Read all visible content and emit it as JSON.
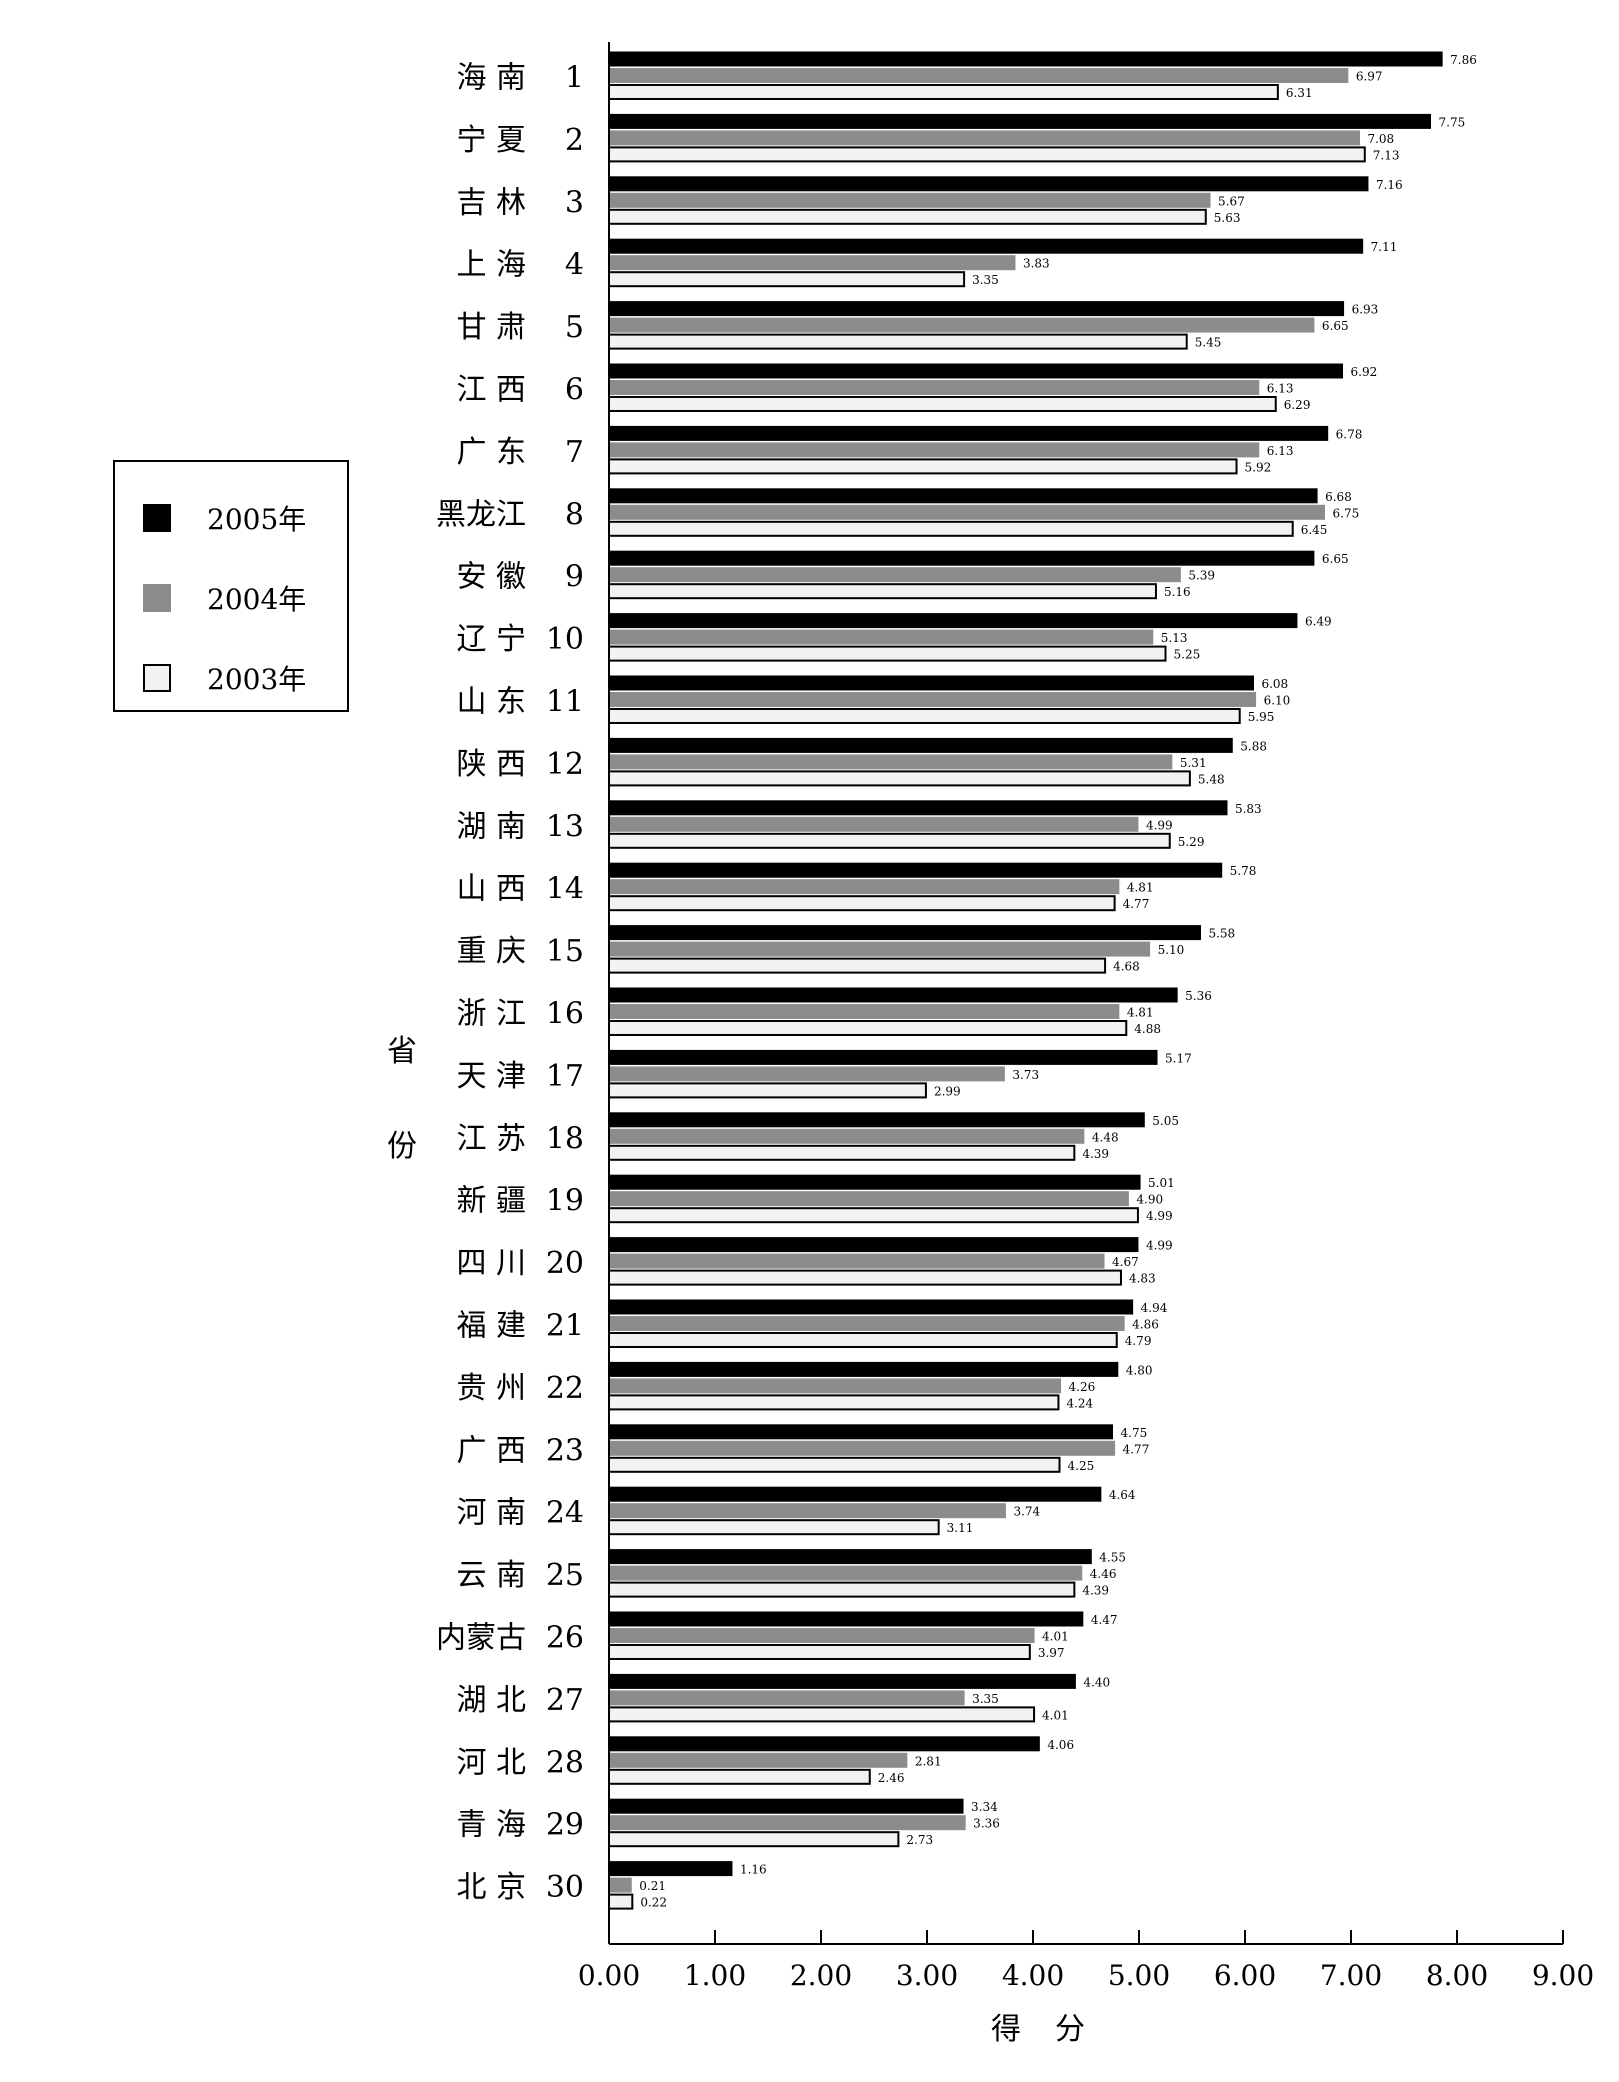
{
  "chart_data": {
    "type": "bar",
    "orientation": "horizontal",
    "ylabel": "省份",
    "xlabel": "得分",
    "xlim": [
      0,
      9
    ],
    "xticks": [
      "0.00",
      "1.00",
      "2.00",
      "3.00",
      "4.00",
      "5.00",
      "6.00",
      "7.00",
      "8.00",
      "9.00"
    ],
    "legend_position": "left",
    "colors": {
      "2005年": "#000000",
      "2004年": "#8c8c8c",
      "2003年": "#f2f2f2"
    },
    "categories": [
      {
        "name": "海 南",
        "rank": "1"
      },
      {
        "name": "宁 夏",
        "rank": "2"
      },
      {
        "name": "吉 林",
        "rank": "3"
      },
      {
        "name": "上 海",
        "rank": "4"
      },
      {
        "name": "甘 肃",
        "rank": "5"
      },
      {
        "name": "江 西",
        "rank": "6"
      },
      {
        "name": "广 东",
        "rank": "7"
      },
      {
        "name": "黑龙江",
        "rank": "8"
      },
      {
        "name": "安 徽",
        "rank": "9"
      },
      {
        "name": "辽 宁",
        "rank": "10"
      },
      {
        "name": "山 东",
        "rank": "11"
      },
      {
        "name": "陕 西",
        "rank": "12"
      },
      {
        "name": "湖 南",
        "rank": "13"
      },
      {
        "name": "山 西",
        "rank": "14"
      },
      {
        "name": "重 庆",
        "rank": "15"
      },
      {
        "name": "浙 江",
        "rank": "16"
      },
      {
        "name": "天 津",
        "rank": "17"
      },
      {
        "name": "江 苏",
        "rank": "18"
      },
      {
        "name": "新 疆",
        "rank": "19"
      },
      {
        "name": "四 川",
        "rank": "20"
      },
      {
        "name": "福 建",
        "rank": "21"
      },
      {
        "name": "贵 州",
        "rank": "22"
      },
      {
        "name": "广 西",
        "rank": "23"
      },
      {
        "name": "河 南",
        "rank": "24"
      },
      {
        "name": "云 南",
        "rank": "25"
      },
      {
        "name": "内蒙古",
        "rank": "26"
      },
      {
        "name": "湖 北",
        "rank": "27"
      },
      {
        "name": "河 北",
        "rank": "28"
      },
      {
        "name": "青 海",
        "rank": "29"
      },
      {
        "name": "北 京",
        "rank": "30"
      }
    ],
    "series": [
      {
        "name": "2005年",
        "values": [
          7.86,
          7.75,
          7.16,
          7.11,
          6.93,
          6.92,
          6.78,
          6.68,
          6.65,
          6.49,
          6.08,
          5.88,
          5.83,
          5.78,
          5.58,
          5.36,
          5.17,
          5.05,
          5.01,
          4.99,
          4.94,
          4.8,
          4.75,
          4.64,
          4.55,
          4.47,
          4.4,
          4.06,
          3.34,
          1.16
        ]
      },
      {
        "name": "2004年",
        "values": [
          6.97,
          7.08,
          5.67,
          3.83,
          6.65,
          6.13,
          6.13,
          6.75,
          5.39,
          5.13,
          6.1,
          5.31,
          4.99,
          4.81,
          5.1,
          4.81,
          3.73,
          4.48,
          4.9,
          4.67,
          4.86,
          4.26,
          4.77,
          3.74,
          4.46,
          4.01,
          3.35,
          2.81,
          3.36,
          0.21
        ]
      },
      {
        "name": "2003年",
        "values": [
          6.31,
          7.13,
          5.63,
          3.35,
          5.45,
          6.29,
          5.92,
          6.45,
          5.16,
          5.25,
          5.95,
          5.48,
          5.29,
          4.77,
          4.68,
          4.88,
          2.99,
          4.39,
          4.99,
          4.83,
          4.79,
          4.24,
          4.25,
          3.11,
          4.39,
          3.97,
          4.01,
          2.46,
          2.73,
          0.22
        ]
      }
    ]
  }
}
